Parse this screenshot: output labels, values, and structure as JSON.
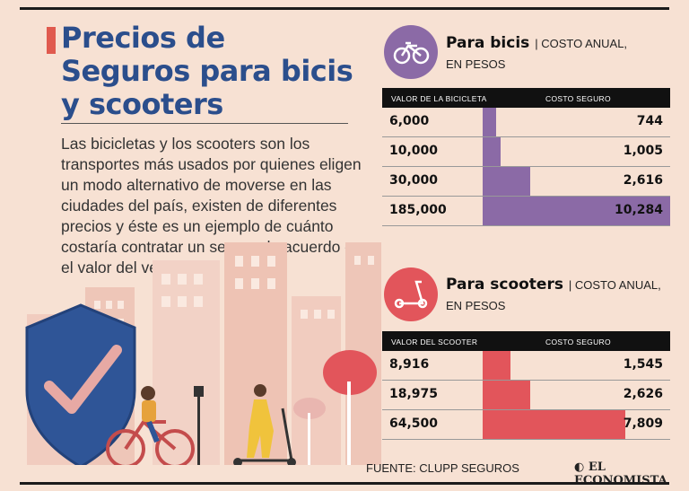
{
  "header": {
    "title": "Precios de Seguros para bicis y scooters",
    "intro": "Las bicicletas y los scooters son los transportes más usados por quienes eligen un modo alternativo de moverse en las ciudades del país, existen de diferentes precios y éste es un ejemplo de cuánto costaría contratar un seguro de acuerdo con el valor del vehículo:"
  },
  "sections": {
    "bicis": {
      "title": "Para bicis",
      "subtitle_line1": "| COSTO ANUAL,",
      "subtitle_line2": "EN PESOS",
      "col1": "VALOR DE LA BICICLETA",
      "col2": "COSTO SEGURO"
    },
    "scooters": {
      "title": "Para scooters",
      "subtitle_line1": "| COSTO ANUAL,",
      "subtitle_line2": "EN PESOS",
      "col1": "VALOR DEL SCOOTER",
      "col2": "COSTO SEGURO"
    }
  },
  "footer": {
    "source": "FUENTE: CLUPP SEGUROS",
    "brand": "EL ECONOMISTA"
  },
  "colors": {
    "bici": "#8b6aa6",
    "scooter": "#e2555b",
    "title": "#2b4e8c"
  },
  "chart_data": [
    {
      "type": "bar",
      "title": "Para bicis",
      "xlabel": "VALOR DE LA BICICLETA",
      "ylabel": "COSTO SEGURO",
      "categories": [
        "6,000",
        "10,000",
        "30,000",
        "185,000"
      ],
      "values": [
        744,
        1005,
        2616,
        10284
      ],
      "value_labels": [
        "744",
        "1,005",
        "2,616",
        "10,284"
      ],
      "ylim": [
        0,
        10284
      ]
    },
    {
      "type": "bar",
      "title": "Para scooters",
      "xlabel": "VALOR DEL SCOOTER",
      "ylabel": "COSTO SEGURO",
      "categories": [
        "8,916",
        "18,975",
        "64,500"
      ],
      "values": [
        1545,
        2626,
        7809
      ],
      "value_labels": [
        "1,545",
        "2,626",
        "7,809"
      ],
      "ylim": [
        0,
        10284
      ]
    }
  ]
}
